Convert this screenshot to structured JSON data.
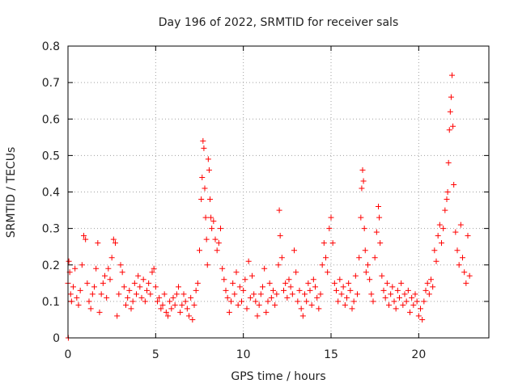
{
  "chart_data": {
    "type": "scatter",
    "title": "Day 196 of 2022, SRMTID for receiver sals",
    "xlabel": "GPS time / hours",
    "ylabel": "SRMTID / TECUs",
    "xlim": [
      0,
      24
    ],
    "ylim": [
      0,
      0.8
    ],
    "xticks": [
      0,
      5,
      10,
      15,
      20
    ],
    "xtick_labels": [
      "0",
      "5",
      "10",
      "15",
      "20"
    ],
    "yticks": [
      0,
      0.1,
      0.2,
      0.3,
      0.4,
      0.5,
      0.6,
      0.7,
      0.8
    ],
    "ytick_labels": [
      "0",
      "0.1",
      "0.2",
      "0.3",
      "0.4",
      "0.5",
      "0.6",
      "0.7",
      "0.8"
    ],
    "grid": true,
    "marker": "+",
    "color": "#ff0000",
    "series": [
      {
        "name": "SRMTID",
        "points": [
          [
            0.0,
            0.15
          ],
          [
            0.02,
            0.0
          ],
          [
            0.05,
            0.21
          ],
          [
            0.1,
            0.18
          ],
          [
            0.15,
            0.12
          ],
          [
            0.2,
            0.1
          ],
          [
            0.3,
            0.14
          ],
          [
            0.4,
            0.19
          ],
          [
            0.5,
            0.11
          ],
          [
            0.6,
            0.09
          ],
          [
            0.7,
            0.13
          ],
          [
            0.8,
            0.2
          ],
          [
            0.9,
            0.28
          ],
          [
            1.0,
            0.27
          ],
          [
            1.1,
            0.15
          ],
          [
            1.2,
            0.1
          ],
          [
            1.3,
            0.08
          ],
          [
            1.4,
            0.12
          ],
          [
            1.5,
            0.14
          ],
          [
            1.6,
            0.19
          ],
          [
            1.7,
            0.26
          ],
          [
            1.8,
            0.07
          ],
          [
            1.9,
            0.12
          ],
          [
            2.0,
            0.15
          ],
          [
            2.1,
            0.17
          ],
          [
            2.2,
            0.11
          ],
          [
            2.3,
            0.19
          ],
          [
            2.4,
            0.16
          ],
          [
            2.5,
            0.22
          ],
          [
            2.6,
            0.27
          ],
          [
            2.7,
            0.26
          ],
          [
            2.8,
            0.06
          ],
          [
            2.9,
            0.12
          ],
          [
            3.0,
            0.2
          ],
          [
            3.1,
            0.18
          ],
          [
            3.2,
            0.14
          ],
          [
            3.3,
            0.09
          ],
          [
            3.4,
            0.11
          ],
          [
            3.5,
            0.13
          ],
          [
            3.6,
            0.08
          ],
          [
            3.7,
            0.1
          ],
          [
            3.8,
            0.15
          ],
          [
            3.9,
            0.12
          ],
          [
            4.0,
            0.17
          ],
          [
            4.1,
            0.14
          ],
          [
            4.2,
            0.11
          ],
          [
            4.3,
            0.16
          ],
          [
            4.4,
            0.1
          ],
          [
            4.5,
            0.13
          ],
          [
            4.6,
            0.15
          ],
          [
            4.7,
            0.12
          ],
          [
            4.8,
            0.18
          ],
          [
            4.9,
            0.19
          ],
          [
            5.0,
            0.14
          ],
          [
            5.1,
            0.1
          ],
          [
            5.2,
            0.11
          ],
          [
            5.3,
            0.08
          ],
          [
            5.4,
            0.09
          ],
          [
            5.5,
            0.12
          ],
          [
            5.6,
            0.07
          ],
          [
            5.7,
            0.06
          ],
          [
            5.8,
            0.1
          ],
          [
            5.9,
            0.08
          ],
          [
            6.0,
            0.11
          ],
          [
            6.1,
            0.09
          ],
          [
            6.2,
            0.12
          ],
          [
            6.3,
            0.14
          ],
          [
            6.4,
            0.07
          ],
          [
            6.5,
            0.09
          ],
          [
            6.6,
            0.12
          ],
          [
            6.7,
            0.1
          ],
          [
            6.8,
            0.08
          ],
          [
            6.9,
            0.06
          ],
          [
            7.0,
            0.11
          ],
          [
            7.1,
            0.05
          ],
          [
            7.2,
            0.09
          ],
          [
            7.3,
            0.13
          ],
          [
            7.4,
            0.15
          ],
          [
            7.5,
            0.24
          ],
          [
            7.6,
            0.38
          ],
          [
            7.65,
            0.44
          ],
          [
            7.7,
            0.54
          ],
          [
            7.75,
            0.52
          ],
          [
            7.8,
            0.41
          ],
          [
            7.85,
            0.33
          ],
          [
            7.9,
            0.27
          ],
          [
            7.95,
            0.2
          ],
          [
            8.0,
            0.49
          ],
          [
            8.05,
            0.46
          ],
          [
            8.1,
            0.38
          ],
          [
            8.15,
            0.33
          ],
          [
            8.2,
            0.3
          ],
          [
            8.3,
            0.32
          ],
          [
            8.4,
            0.27
          ],
          [
            8.5,
            0.24
          ],
          [
            8.6,
            0.26
          ],
          [
            8.7,
            0.3
          ],
          [
            8.8,
            0.19
          ],
          [
            8.9,
            0.16
          ],
          [
            9.0,
            0.13
          ],
          [
            9.1,
            0.11
          ],
          [
            9.2,
            0.07
          ],
          [
            9.3,
            0.1
          ],
          [
            9.4,
            0.15
          ],
          [
            9.5,
            0.12
          ],
          [
            9.6,
            0.18
          ],
          [
            9.7,
            0.09
          ],
          [
            9.8,
            0.14
          ],
          [
            9.9,
            0.1
          ],
          [
            10.0,
            0.13
          ],
          [
            10.1,
            0.16
          ],
          [
            10.2,
            0.08
          ],
          [
            10.3,
            0.21
          ],
          [
            10.4,
            0.11
          ],
          [
            10.5,
            0.17
          ],
          [
            10.6,
            0.12
          ],
          [
            10.7,
            0.1
          ],
          [
            10.8,
            0.06
          ],
          [
            10.9,
            0.09
          ],
          [
            11.0,
            0.12
          ],
          [
            11.1,
            0.14
          ],
          [
            11.2,
            0.19
          ],
          [
            11.3,
            0.07
          ],
          [
            11.4,
            0.1
          ],
          [
            11.5,
            0.15
          ],
          [
            11.6,
            0.11
          ],
          [
            11.7,
            0.13
          ],
          [
            11.8,
            0.09
          ],
          [
            11.9,
            0.12
          ],
          [
            12.0,
            0.2
          ],
          [
            12.05,
            0.35
          ],
          [
            12.1,
            0.28
          ],
          [
            12.2,
            0.22
          ],
          [
            12.3,
            0.13
          ],
          [
            12.4,
            0.15
          ],
          [
            12.5,
            0.11
          ],
          [
            12.6,
            0.16
          ],
          [
            12.7,
            0.14
          ],
          [
            12.8,
            0.12
          ],
          [
            12.9,
            0.24
          ],
          [
            13.0,
            0.18
          ],
          [
            13.1,
            0.1
          ],
          [
            13.2,
            0.13
          ],
          [
            13.3,
            0.08
          ],
          [
            13.4,
            0.06
          ],
          [
            13.5,
            0.12
          ],
          [
            13.6,
            0.1
          ],
          [
            13.7,
            0.15
          ],
          [
            13.8,
            0.13
          ],
          [
            13.9,
            0.09
          ],
          [
            14.0,
            0.16
          ],
          [
            14.1,
            0.14
          ],
          [
            14.2,
            0.11
          ],
          [
            14.3,
            0.08
          ],
          [
            14.4,
            0.12
          ],
          [
            14.5,
            0.2
          ],
          [
            14.6,
            0.26
          ],
          [
            14.7,
            0.22
          ],
          [
            14.8,
            0.18
          ],
          [
            14.9,
            0.3
          ],
          [
            15.0,
            0.33
          ],
          [
            15.1,
            0.26
          ],
          [
            15.2,
            0.15
          ],
          [
            15.3,
            0.13
          ],
          [
            15.4,
            0.1
          ],
          [
            15.5,
            0.16
          ],
          [
            15.6,
            0.12
          ],
          [
            15.7,
            0.14
          ],
          [
            15.8,
            0.09
          ],
          [
            15.9,
            0.11
          ],
          [
            16.0,
            0.15
          ],
          [
            16.1,
            0.13
          ],
          [
            16.2,
            0.08
          ],
          [
            16.3,
            0.1
          ],
          [
            16.4,
            0.17
          ],
          [
            16.5,
            0.12
          ],
          [
            16.6,
            0.22
          ],
          [
            16.7,
            0.33
          ],
          [
            16.75,
            0.41
          ],
          [
            16.8,
            0.46
          ],
          [
            16.85,
            0.43
          ],
          [
            16.9,
            0.3
          ],
          [
            16.95,
            0.24
          ],
          [
            17.0,
            0.18
          ],
          [
            17.1,
            0.2
          ],
          [
            17.2,
            0.16
          ],
          [
            17.3,
            0.12
          ],
          [
            17.4,
            0.1
          ],
          [
            17.5,
            0.22
          ],
          [
            17.6,
            0.29
          ],
          [
            17.7,
            0.36
          ],
          [
            17.75,
            0.33
          ],
          [
            17.8,
            0.26
          ],
          [
            17.9,
            0.17
          ],
          [
            18.0,
            0.13
          ],
          [
            18.1,
            0.11
          ],
          [
            18.2,
            0.15
          ],
          [
            18.3,
            0.09
          ],
          [
            18.4,
            0.12
          ],
          [
            18.5,
            0.14
          ],
          [
            18.6,
            0.1
          ],
          [
            18.7,
            0.08
          ],
          [
            18.8,
            0.13
          ],
          [
            18.9,
            0.11
          ],
          [
            19.0,
            0.15
          ],
          [
            19.1,
            0.09
          ],
          [
            19.2,
            0.12
          ],
          [
            19.3,
            0.1
          ],
          [
            19.4,
            0.13
          ],
          [
            19.5,
            0.07
          ],
          [
            19.6,
            0.11
          ],
          [
            19.7,
            0.09
          ],
          [
            19.8,
            0.12
          ],
          [
            19.9,
            0.1
          ],
          [
            20.0,
            0.06
          ],
          [
            20.1,
            0.08
          ],
          [
            20.2,
            0.05
          ],
          [
            20.3,
            0.1
          ],
          [
            20.4,
            0.13
          ],
          [
            20.5,
            0.15
          ],
          [
            20.6,
            0.12
          ],
          [
            20.7,
            0.16
          ],
          [
            20.8,
            0.14
          ],
          [
            20.9,
            0.24
          ],
          [
            21.0,
            0.21
          ],
          [
            21.1,
            0.28
          ],
          [
            21.2,
            0.31
          ],
          [
            21.3,
            0.26
          ],
          [
            21.4,
            0.3
          ],
          [
            21.5,
            0.35
          ],
          [
            21.6,
            0.38
          ],
          [
            21.65,
            0.4
          ],
          [
            21.7,
            0.48
          ],
          [
            21.75,
            0.57
          ],
          [
            21.8,
            0.62
          ],
          [
            21.85,
            0.66
          ],
          [
            21.9,
            0.72
          ],
          [
            21.95,
            0.58
          ],
          [
            22.0,
            0.42
          ],
          [
            22.1,
            0.29
          ],
          [
            22.2,
            0.24
          ],
          [
            22.3,
            0.2
          ],
          [
            22.4,
            0.31
          ],
          [
            22.5,
            0.22
          ],
          [
            22.6,
            0.18
          ],
          [
            22.7,
            0.15
          ],
          [
            22.8,
            0.28
          ],
          [
            22.9,
            0.17
          ]
        ]
      }
    ]
  }
}
